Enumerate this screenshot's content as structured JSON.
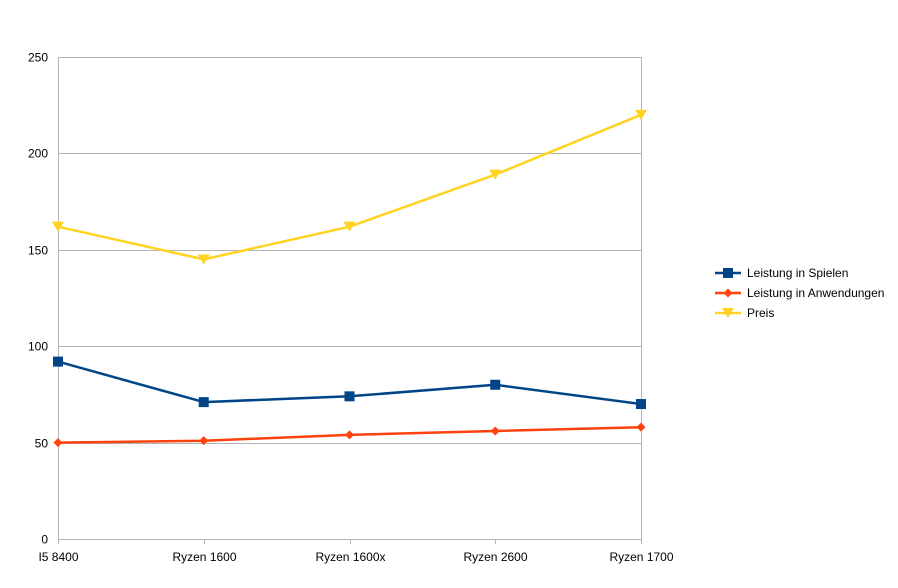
{
  "chart_data": {
    "type": "line",
    "title": "",
    "xlabel": "",
    "ylabel": "",
    "categories": [
      "I5 8400",
      "Ryzen 1600",
      "Ryzen 1600x",
      "Ryzen 2600",
      "Ryzen 1700"
    ],
    "ylim": [
      0,
      250
    ],
    "yticks": [
      0,
      50,
      100,
      150,
      200,
      250
    ],
    "grid": true,
    "legend_position": "right",
    "series": [
      {
        "name": "Leistung in Spielen",
        "values": [
          92,
          71,
          74,
          80,
          70
        ],
        "color": "#004586",
        "marker": "square"
      },
      {
        "name": "Leistung in Anwendungen",
        "values": [
          50,
          51,
          54,
          56,
          58
        ],
        "color": "#ff420e",
        "marker": "diamond"
      },
      {
        "name": "Preis",
        "values": [
          162,
          145,
          162,
          189,
          220
        ],
        "color": "#ffd320",
        "marker": "triangle-down"
      }
    ]
  }
}
